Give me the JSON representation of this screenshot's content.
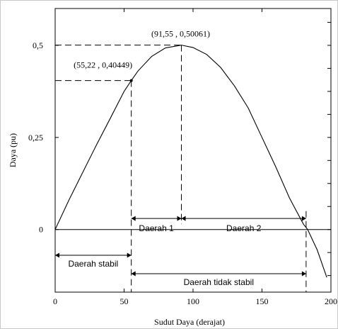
{
  "chart_data": {
    "type": "line",
    "xlabel": "Sudut Daya (derajat)",
    "ylabel": "Daya (pu)",
    "xlim": [
      0,
      200
    ],
    "ylim": [
      -0.17,
      0.6
    ],
    "xticks": [
      0,
      50,
      100,
      150,
      200
    ],
    "xtick_labels": [
      "0",
      "50",
      "100",
      "150",
      "200"
    ],
    "yticks": [
      0,
      0.25,
      0.5
    ],
    "ytick_labels": [
      "0",
      "0,25",
      "0,5"
    ],
    "grid": false,
    "series": [
      {
        "x": [
          0,
          10,
          20,
          30,
          40,
          50,
          55.22,
          60,
          70,
          80,
          91.55,
          100,
          110,
          120,
          130,
          140,
          150,
          160,
          170,
          180,
          183.1,
          190,
          197
        ],
        "values": [
          0,
          0.08,
          0.155,
          0.23,
          0.302,
          0.375,
          0.40449,
          0.43,
          0.47,
          0.493,
          0.50061,
          0.494,
          0.475,
          0.44,
          0.39,
          0.33,
          0.25,
          0.17,
          0.085,
          0.015,
          0,
          -0.055,
          -0.13
        ]
      }
    ],
    "annotations": [
      {
        "text": "(91,55 , 0,50061)",
        "x": 91.55,
        "y": 0.50061
      },
      {
        "text": "(55,22 , 0,40449)",
        "x": 55.22,
        "y": 0.40449
      }
    ],
    "regions": [
      {
        "label": "Daerah stabil",
        "x_start": 0,
        "x_end": 55.22,
        "y": -0.07
      },
      {
        "label": "Daerah 1",
        "x_start": 55.22,
        "x_end": 91.55,
        "y": 0.03
      },
      {
        "label": "Daerah 2",
        "x_start": 91.55,
        "x_end": 182,
        "y": 0.03
      },
      {
        "label": "Daerah tidak stabil",
        "x_start": 55.22,
        "x_end": 182,
        "y": -0.12
      }
    ]
  }
}
